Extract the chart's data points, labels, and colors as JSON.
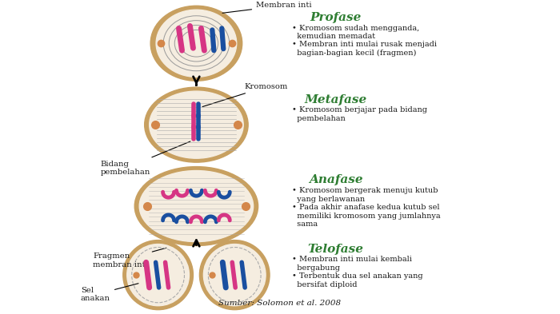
{
  "bg_color": "#ffffff",
  "title_color": "#2e7d32",
  "text_color": "#1a1a1a",
  "cell_outer_color": "#c8a060",
  "cell_inner_color": "#f5ede0",
  "arrow_color": "#111111",
  "profase_title": "Profase",
  "profase_bullets": "• Kromosom sudah mengganda,\n  kemudian memadat\n• Membran inti mulai rusak menjadi\n  bagian-bagian kecil (fragmen)",
  "metafase_title": "Metafase",
  "metafase_bullets": "• Kromosom berjajar pada bidang\n  pembelahan",
  "anafase_title": "Anafase",
  "anafase_bullets": "• Kromosom bergerak menuju kutub\n  yang berlawanan\n• Pada akhir anafase kedua kutub sel\n  memiliki kromosom yang jumlahnya\n  sama",
  "telofase_title": "Telofase",
  "telofase_bullets": "• Membran inti mulai kembali\n  bergabung\n• Terbentuk dua sel anakan yang\n  bersifat diploid",
  "label_membran": "Membran inti",
  "label_kromosom": "Kromosom",
  "label_bidang": "Bidang\npembelahan",
  "label_fragmen": "Fragmen\nmembran inti",
  "label_sel_anakan": "Sel\nanakan",
  "source_text": "Sumber: Solomon et al. 2008",
  "chrom_pink": "#d63584",
  "chrom_blue": "#1a4fa0",
  "spindle_color": "#aaaaaa",
  "centriole_color": "#d4874a",
  "nucleus_line_color": "#999999"
}
